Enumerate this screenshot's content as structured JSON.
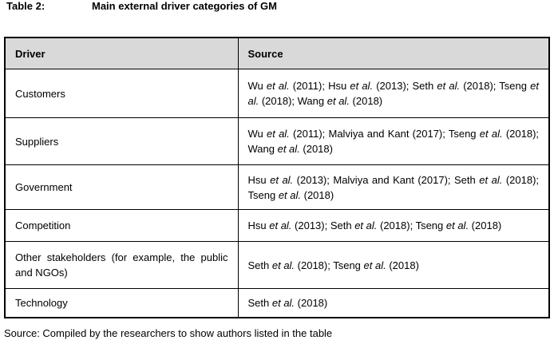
{
  "title": {
    "label": "Table 2:",
    "text": "Main external driver categories of GM"
  },
  "table": {
    "headers": [
      "Driver",
      "Source"
    ],
    "rows": [
      {
        "driver": "Customers",
        "source": "Wu *et al.* (2011); Hsu *et al.* (2013); Seth *et al.* (2018); Tseng *et al.* (2018); Wang *et al.* (2018)"
      },
      {
        "driver": "Suppliers",
        "source": "Wu *et al.* (2011); Malviya and Kant (2017); Tseng *et al.* (2018); Wang *et al.* (2018)"
      },
      {
        "driver": "Government",
        "source": "Hsu *et al.* (2013); Malviya and Kant (2017); Seth *et al.* (2018); Tseng *et al.* (2018)"
      },
      {
        "driver": "Competition",
        "source": "Hsu *et al.* (2013); Seth *et al.* (2018); Tseng *et al.* (2018)"
      },
      {
        "driver": "Other stakeholders (for example, the public and NGOs)",
        "source": "Seth *et al.* (2018); Tseng *et al.* (2018)"
      },
      {
        "driver": "Technology",
        "source": "Seth *et al.* (2018)"
      }
    ]
  },
  "footer": {
    "source_note": "Source: Compiled by the researchers to show authors listed in the table"
  },
  "colors": {
    "header_background": "#d9d9d9",
    "border": "#000000",
    "text": "#000000"
  }
}
